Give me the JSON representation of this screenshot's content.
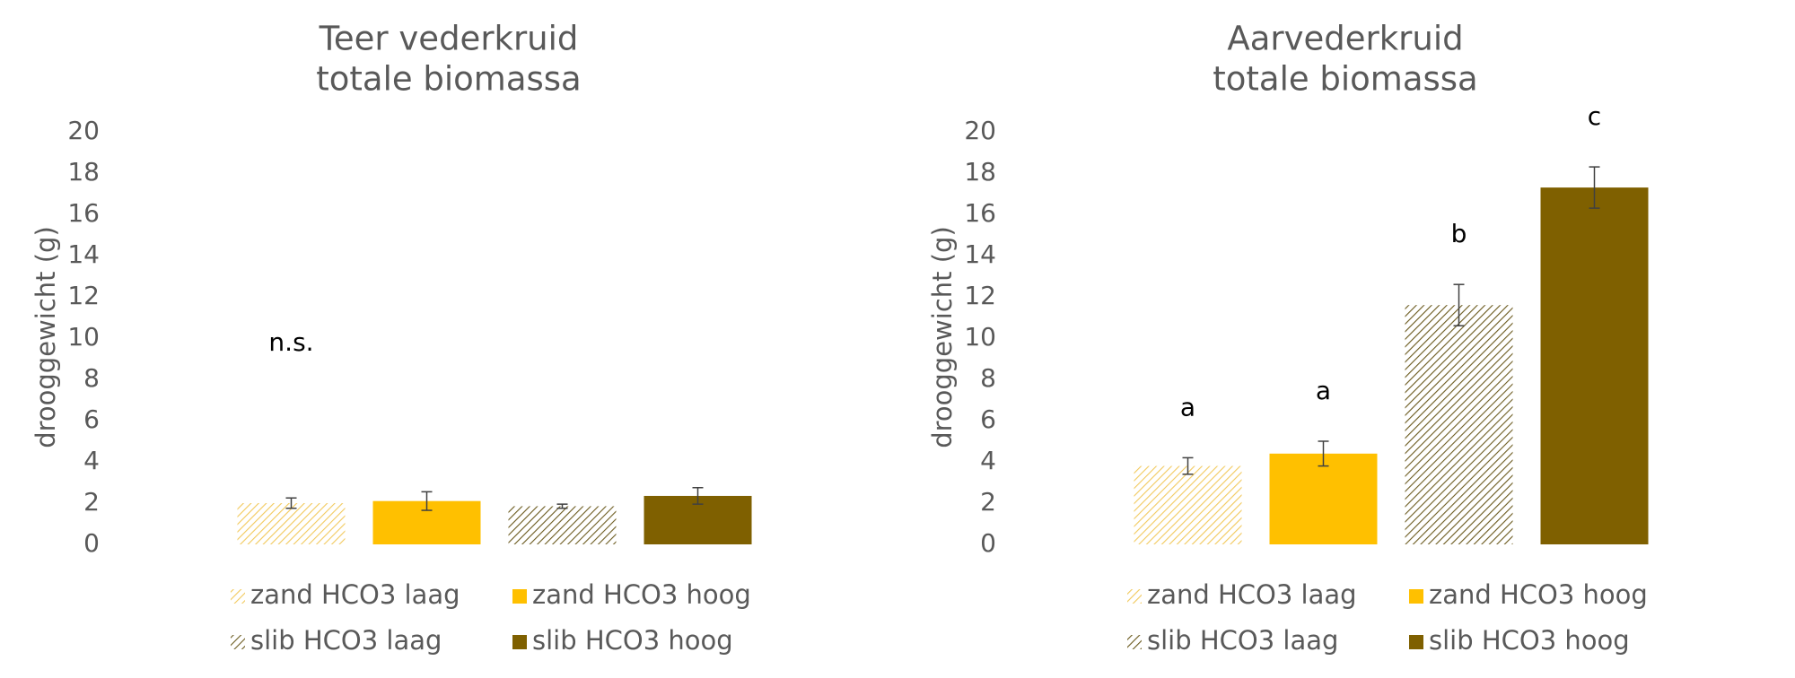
{
  "chart_data": [
    {
      "type": "bar",
      "title": [
        "Teer vederkruid",
        "totale biomassa"
      ],
      "ylabel": "drooggewicht (g)",
      "ylim": [
        0,
        20
      ],
      "yticks": [
        0,
        2,
        4,
        6,
        8,
        10,
        12,
        14,
        16,
        18,
        20
      ],
      "series": [
        {
          "name": "zand HCO3 laag",
          "color": "#f2c95c",
          "hatch": true,
          "values": [
            2.0
          ],
          "errors": [
            0.25
          ]
        },
        {
          "name": "zand HCO3 hoog",
          "color": "#ffc000",
          "hatch": false,
          "values": [
            2.1
          ],
          "errors": [
            0.45
          ]
        },
        {
          "name": "slib HCO3 laag",
          "color": "#6b5a1e",
          "hatch": true,
          "values": [
            1.85
          ],
          "errors": [
            0.1
          ]
        },
        {
          "name": "slib HCO3 hoog",
          "color": "#7f6000",
          "hatch": false,
          "values": [
            2.35
          ],
          "errors": [
            0.4
          ]
        }
      ],
      "annotations": [
        "n.s."
      ]
    },
    {
      "type": "bar",
      "title": [
        "Aarvederkruid",
        "totale biomassa"
      ],
      "ylabel": "drooggewicht (g)",
      "ylim": [
        0,
        20
      ],
      "yticks": [
        0,
        2,
        4,
        6,
        8,
        10,
        12,
        14,
        16,
        18,
        20
      ],
      "series": [
        {
          "name": "zand HCO3 laag",
          "color": "#f2c95c",
          "hatch": true,
          "values": [
            3.8
          ],
          "errors": [
            0.4
          ]
        },
        {
          "name": "zand HCO3 hoog",
          "color": "#ffc000",
          "hatch": false,
          "values": [
            4.4
          ],
          "errors": [
            0.6
          ]
        },
        {
          "name": "slib HCO3 laag",
          "color": "#6b5a1e",
          "hatch": true,
          "values": [
            11.6
          ],
          "errors": [
            1.0
          ]
        },
        {
          "name": "slib HCO3 hoog",
          "color": "#7f6000",
          "hatch": false,
          "values": [
            17.3
          ],
          "errors": [
            1.0
          ]
        }
      ],
      "bar_labels": [
        "a",
        "a",
        "b",
        "c"
      ]
    }
  ]
}
